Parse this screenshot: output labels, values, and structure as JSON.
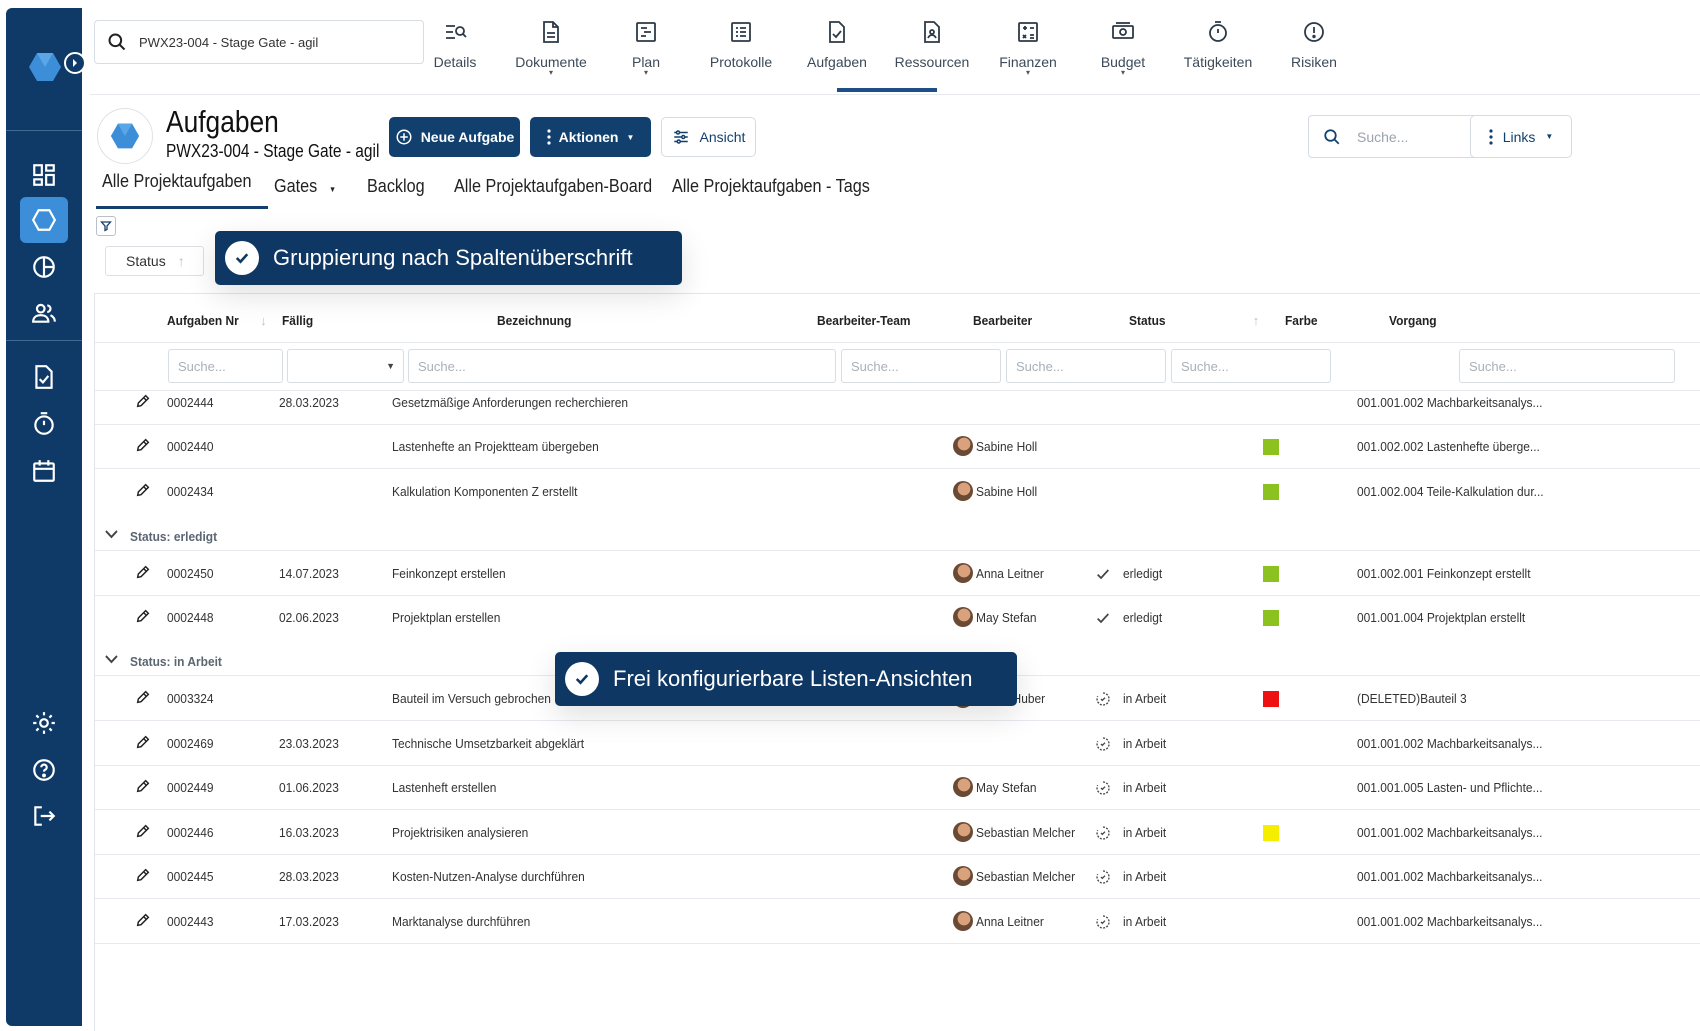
{
  "top_search": {
    "value": "PWX23-004 - Stage Gate - agil"
  },
  "nav": {
    "items": [
      {
        "label": "Details",
        "icon": "details-icon",
        "dot": false
      },
      {
        "label": "Dokumente",
        "icon": "document-icon",
        "dot": true
      },
      {
        "label": "Plan",
        "icon": "plan-icon",
        "dot": true
      },
      {
        "label": "Protokolle",
        "icon": "protocol-icon",
        "dot": false
      },
      {
        "label": "Aufgaben",
        "icon": "task-check-icon",
        "dot": false
      },
      {
        "label": "Ressourcen",
        "icon": "resource-icon",
        "dot": false
      },
      {
        "label": "Finanzen",
        "icon": "finance-icon",
        "dot": true
      },
      {
        "label": "Budget",
        "icon": "budget-icon",
        "dot": true
      },
      {
        "label": "Tätigkeiten",
        "icon": "stopwatch-icon",
        "dot": false
      },
      {
        "label": "Risiken",
        "icon": "risk-icon",
        "dot": false
      }
    ],
    "active": "Aufgaben"
  },
  "header": {
    "title": "Aufgaben",
    "subtitle": "PWX23-004 - Stage Gate - agil",
    "new_task_label": "Neue Aufgabe",
    "actions_label": "Aktionen",
    "view_label": "Ansicht",
    "search_placeholder": "Suche...",
    "links_label": "Links"
  },
  "tabs": [
    {
      "label": "Alle Projektaufgaben",
      "active": true
    },
    {
      "label": "Gates",
      "dropdown": true
    },
    {
      "label": "Backlog"
    },
    {
      "label": "Alle Projektaufgaben-Board"
    },
    {
      "label": "Alle Projektaufgaben - Tags"
    }
  ],
  "group_chip": {
    "label": "Status"
  },
  "banners": {
    "grouping": "Gruppierung nach Spaltenüberschrift",
    "views": "Frei konfigurierbare Listen-Ansichten"
  },
  "table": {
    "columns": {
      "nr": "Aufgaben Nr",
      "due": "Fällig",
      "name": "Bezeichnung",
      "team": "Bearbeiter-Team",
      "assignee": "Bearbeiter",
      "status": "Status",
      "color": "Farbe",
      "process": "Vorgang"
    },
    "filter_placeholder": "Suche...",
    "groups": {
      "done": "Status: erledigt",
      "in_progress": "Status: in Arbeit"
    },
    "rows": [
      {
        "nr": "0002444",
        "due": "28.03.2023",
        "name": "Gesetzmäßige Anforderungen recherchieren",
        "assignee": "",
        "status": "",
        "color": "",
        "process": "001.001.002 Machbarkeitsanalys..."
      },
      {
        "nr": "0002440",
        "due": "",
        "name": "Lastenhefte an Projektteam übergeben",
        "assignee": "Sabine Holl",
        "status": "",
        "color": "#8cc21f",
        "process": "001.002.002 Lastenhefte überge..."
      },
      {
        "nr": "0002434",
        "due": "",
        "name": "Kalkulation Komponenten Z erstellt",
        "assignee": "Sabine Holl",
        "status": "",
        "color": "#8cc21f",
        "process": "001.002.004 Teile-Kalkulation dur..."
      },
      {
        "nr": "0002450",
        "due": "14.07.2023",
        "name": "Feinkonzept erstellen",
        "assignee": "Anna Leitner",
        "status": "erledigt",
        "color": "#8cc21f",
        "process": "001.002.001 Feinkonzept erstellt"
      },
      {
        "nr": "0002448",
        "due": "02.06.2023",
        "name": "Projektplan erstellen",
        "assignee": "May Stefan",
        "status": "erledigt",
        "color": "#8cc21f",
        "process": "001.001.004 Projektplan erstellt"
      },
      {
        "nr": "0003324",
        "due": "",
        "name": "Bauteil im Versuch gebrochen",
        "assignee": "Martin Huber",
        "status": "in Arbeit",
        "color": "#ee1111",
        "process": "(DELETED)Bauteil 3"
      },
      {
        "nr": "0002469",
        "due": "23.03.2023",
        "name": "Technische Umsetzbarkeit abgeklärt",
        "assignee": "",
        "status": "in Arbeit",
        "color": "",
        "process": "001.001.002 Machbarkeitsanalys..."
      },
      {
        "nr": "0002449",
        "due": "01.06.2023",
        "name": "Lastenheft erstellen",
        "assignee": "May Stefan",
        "status": "in Arbeit",
        "color": "",
        "process": "001.001.005 Lasten- und Pflichte..."
      },
      {
        "nr": "0002446",
        "due": "16.03.2023",
        "name": "Projektrisiken analysieren",
        "assignee": "Sebastian Melcher",
        "status": "in Arbeit",
        "color": "#f5ee00",
        "process": "001.001.002 Machbarkeitsanalys..."
      },
      {
        "nr": "0002445",
        "due": "28.03.2023",
        "name": "Kosten-Nutzen-Analyse durchführen",
        "assignee": "Sebastian Melcher",
        "status": "in Arbeit",
        "color": "",
        "process": "001.001.002 Machbarkeitsanalys..."
      },
      {
        "nr": "0002443",
        "due": "17.03.2023",
        "name": "Marktanalyse durchführen",
        "assignee": "Anna Leitner",
        "status": "in Arbeit",
        "color": "",
        "process": "001.001.002 Machbarkeitsanalys..."
      }
    ]
  }
}
